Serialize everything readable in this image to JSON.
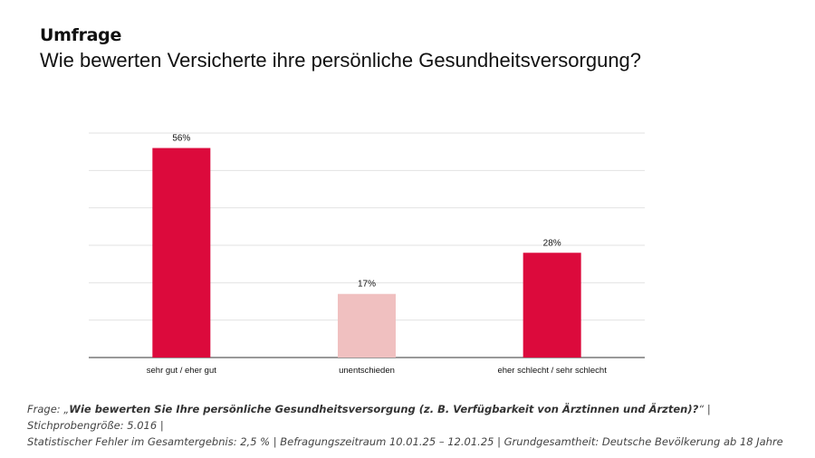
{
  "header": {
    "kicker": "Umfrage",
    "title": "Wie bewerten Versicherte ihre persönliche Gesundheitsversorgung?"
  },
  "chart_data": {
    "type": "bar",
    "categories": [
      "sehr gut / eher gut",
      "unentschieden",
      "eher schlecht / sehr schlecht"
    ],
    "values": [
      56,
      17,
      28
    ],
    "value_labels": [
      "56%",
      "17%",
      "28%"
    ],
    "colors": [
      "#dc0a3c",
      "#f0c0c0",
      "#dc0a3c"
    ],
    "ylim": [
      0,
      60
    ],
    "grid": true,
    "legend": "none"
  },
  "footnote": {
    "question_prefix": "Frage: „",
    "question": "Wie bewerten Sie Ihre persönliche Gesundheitsversorgung (z. B. Verfügbarkeit von Ärztinnen und Ärzten)?",
    "line1_rest": "“ | Stichprobengröße: 5.016 |",
    "line2": "Statistischer Fehler im Gesamtergebnis: 2,5 % | Befragungszeitraum 10.01.25 – 12.01.25 |  Grundgesamtheit: Deutsche Bevölkerung ab 18 Jahre"
  }
}
